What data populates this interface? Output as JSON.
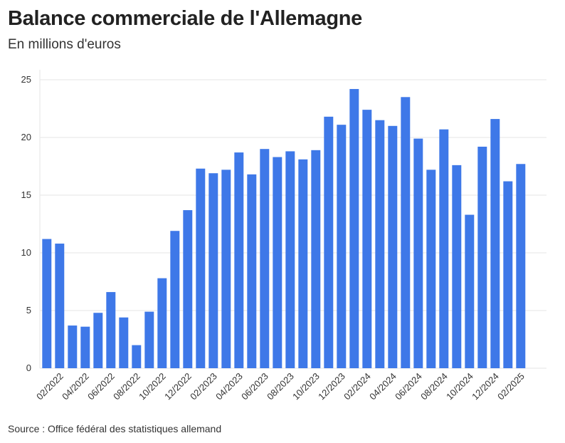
{
  "header": {
    "title": "Balance commerciale de l'Allemagne",
    "subtitle": "En millions d'euros"
  },
  "footer": {
    "source": "Source : Office fédéral des statistiques allemand"
  },
  "colors": {
    "bar": "#3E78E8",
    "grid": "#e6e6e6"
  },
  "chart_data": {
    "type": "bar",
    "title": "Balance commerciale de l'Allemagne",
    "subtitle": "En millions d'euros",
    "xlabel": "",
    "ylabel": "",
    "ylim": [
      0,
      25
    ],
    "yticks": [
      0,
      5,
      10,
      15,
      20,
      25
    ],
    "grid": true,
    "legend": "none",
    "categories": [
      "01/2022",
      "02/2022",
      "03/2022",
      "04/2022",
      "05/2022",
      "06/2022",
      "07/2022",
      "08/2022",
      "09/2022",
      "10/2022",
      "11/2022",
      "12/2022",
      "01/2023",
      "02/2023",
      "03/2023",
      "04/2023",
      "05/2023",
      "06/2023",
      "07/2023",
      "08/2023",
      "09/2023",
      "10/2023",
      "11/2023",
      "12/2023",
      "01/2024",
      "02/2024",
      "03/2024",
      "04/2024",
      "05/2024",
      "06/2024",
      "07/2024",
      "08/2024",
      "09/2024",
      "10/2024",
      "11/2024",
      "12/2024",
      "01/2025",
      "02/2025"
    ],
    "xtick_labels": [
      "02/2022",
      "04/2022",
      "06/2022",
      "08/2022",
      "10/2022",
      "12/2022",
      "02/2023",
      "04/2023",
      "06/2023",
      "08/2023",
      "10/2023",
      "12/2023",
      "02/2024",
      "04/2024",
      "06/2024",
      "08/2024",
      "10/2024",
      "12/2024",
      "02/2025"
    ],
    "values": [
      11.2,
      10.8,
      3.7,
      3.6,
      4.8,
      6.6,
      4.4,
      2.0,
      4.9,
      7.8,
      11.9,
      13.7,
      17.3,
      16.9,
      17.2,
      18.7,
      16.8,
      19.0,
      18.3,
      18.8,
      18.1,
      18.9,
      21.8,
      21.1,
      24.2,
      22.4,
      21.5,
      21.0,
      23.5,
      19.9,
      17.2,
      20.7,
      17.6,
      13.3,
      19.2,
      21.6,
      16.2,
      17.7
    ]
  }
}
